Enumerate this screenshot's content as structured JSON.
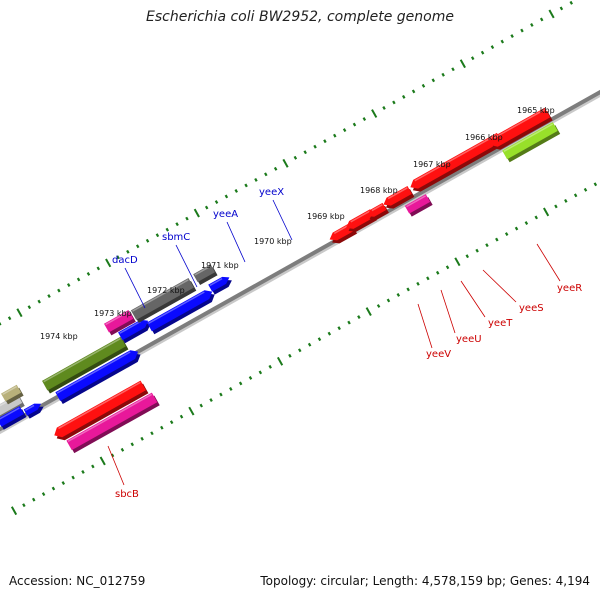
{
  "title": "Escherichia coli BW2952, complete genome",
  "footer": {
    "accession": "Accession: NC_012759",
    "stats": "Topology: circular; Length: 4,578,159 bp; Genes: 4,194"
  },
  "colors": {
    "backbone": "#7d7d7d",
    "tick": "#1b7a1b",
    "forward_label": "#0000cc",
    "reverse_label": "#cc0000",
    "red": "#ff1010",
    "magenta": "#e8189a",
    "blue": "#0a0aff",
    "olive": "#5f8a1e",
    "gray": "#666666",
    "lime": "#98e02a",
    "tan": "#b8b07a",
    "lightgray": "#c8c8c8"
  },
  "scale_labels": [
    "1974 kbp",
    "1973 kbp",
    "1972 kbp",
    "1971 kbp",
    "1970 kbp",
    "1969 kbp",
    "1968 kbp",
    "1967 kbp",
    "1966 kbp",
    "1965 kbp"
  ],
  "forward_gene_labels": [
    "dacD",
    "sbmC",
    "yeeA",
    "yeeX"
  ],
  "reverse_gene_labels": [
    "sbcB",
    "yeeV",
    "yeeU",
    "yeeT",
    "yeeS",
    "yeeR"
  ]
}
